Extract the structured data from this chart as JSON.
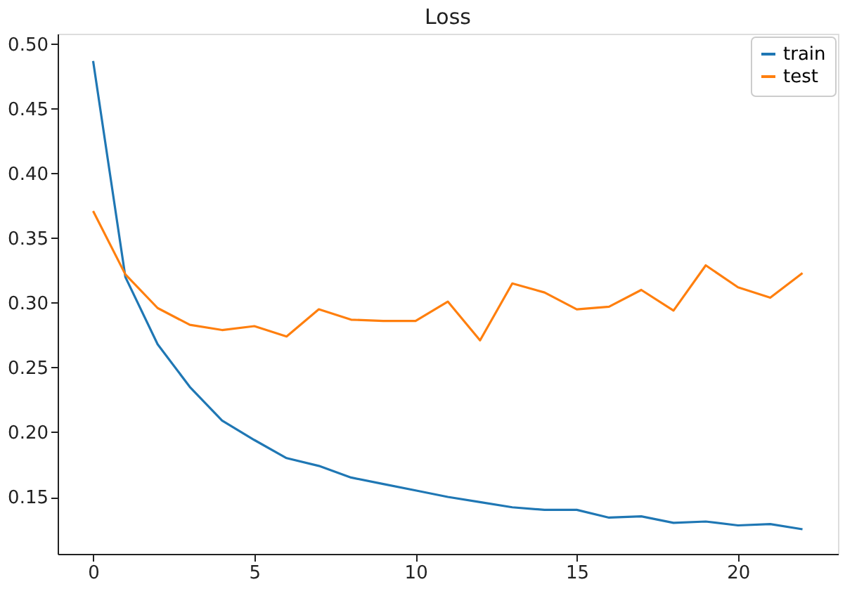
{
  "chart_data": {
    "type": "line",
    "title": "Loss",
    "x": [
      0,
      1,
      2,
      3,
      4,
      5,
      6,
      7,
      8,
      9,
      10,
      11,
      12,
      13,
      14,
      15,
      16,
      17,
      18,
      19,
      20,
      21,
      22
    ],
    "series": [
      {
        "name": "train",
        "color": "#1f77b4",
        "values": [
          0.487,
          0.32,
          0.268,
          0.235,
          0.209,
          0.194,
          0.18,
          0.174,
          0.165,
          0.16,
          0.155,
          0.15,
          0.146,
          0.142,
          0.14,
          0.14,
          0.134,
          0.135,
          0.13,
          0.131,
          0.128,
          0.129,
          0.125
        ]
      },
      {
        "name": "test",
        "color": "#ff7f0e",
        "values": [
          0.371,
          0.322,
          0.296,
          0.283,
          0.279,
          0.282,
          0.274,
          0.295,
          0.287,
          0.286,
          0.286,
          0.301,
          0.271,
          0.315,
          0.308,
          0.295,
          0.297,
          0.31,
          0.294,
          0.329,
          0.312,
          0.304,
          0.323
        ]
      }
    ],
    "xlim": [
      -1.1,
      23.1
    ],
    "xticks": [
      0,
      5,
      10,
      15,
      20
    ],
    "ylim": [
      0.106,
      0.508
    ],
    "yticks": [
      0.15,
      {
        "value": 0.2,
        "label": "0.20"
      },
      0.25,
      {
        "value": 0.3,
        "label": "0.30"
      },
      0.35,
      {
        "value": 0.4,
        "label": "0.40"
      },
      0.45,
      {
        "value": 0.5,
        "label": "0.50"
      }
    ],
    "grid": false,
    "legend": "top right",
    "marker": "none",
    "line_style": "solid"
  }
}
